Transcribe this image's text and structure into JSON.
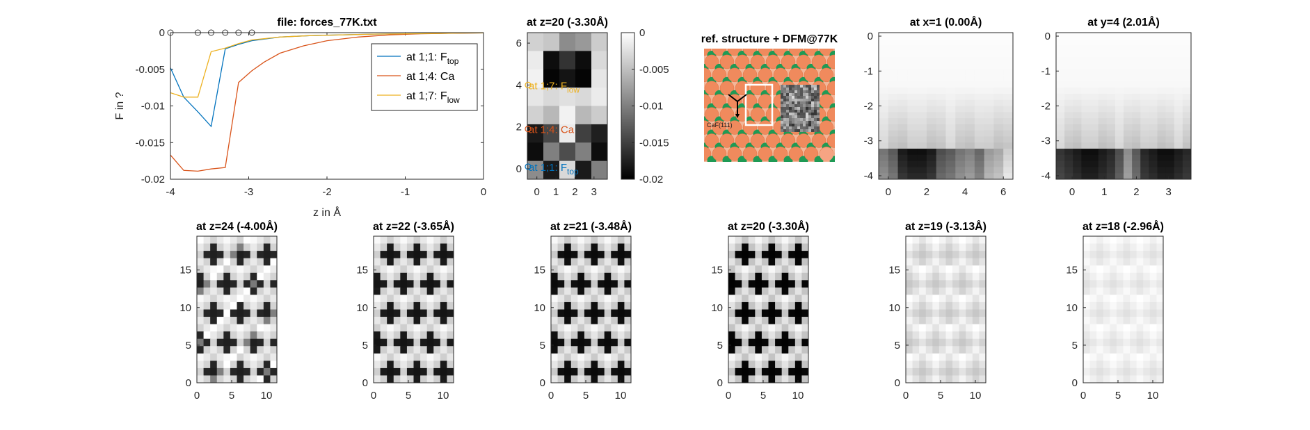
{
  "chart_data": [
    {
      "id": "force-curves",
      "type": "line",
      "title": "file: forces_77K.txt",
      "xlabel": "z in Å",
      "ylabel": "F in ?",
      "xlim": [
        -4,
        0
      ],
      "ylim": [
        -0.02,
        0
      ],
      "xticks": [
        "-4",
        "-3",
        "-2",
        "-1",
        "0"
      ],
      "yticks": [
        "0",
        "-0.005",
        "-0.01",
        "-0.015",
        "-0.02"
      ],
      "legend_position": "top-right",
      "markers_z": [
        -3.65,
        -3.48,
        -3.3,
        -3.13,
        -2.96
      ],
      "series": [
        {
          "name": "at 1;1: F",
          "sub": "top",
          "color": "#0072BD",
          "x": [
            -4.0,
            -3.83,
            -3.65,
            -3.48,
            -3.3,
            -3.13,
            -2.96,
            -2.6,
            -2.2,
            -1.8,
            -1.4,
            -1.0,
            -0.6,
            -0.2,
            0.0
          ],
          "y": [
            -0.0048,
            -0.0088,
            -0.0108,
            -0.0128,
            -0.0022,
            -0.0016,
            -0.0011,
            -0.0006,
            -0.0004,
            -0.0003,
            -0.0002,
            -0.00015,
            -0.0001,
            -5e-05,
            -3e-05
          ]
        },
        {
          "name": "at 1;4: Ca",
          "color": "#D95319",
          "x": [
            -4.0,
            -3.83,
            -3.65,
            -3.48,
            -3.3,
            -3.13,
            -2.96,
            -2.8,
            -2.6,
            -2.3,
            -2.0,
            -1.6,
            -1.2,
            -0.8,
            -0.4,
            0.0
          ],
          "y": [
            -0.0167,
            -0.0188,
            -0.0189,
            -0.0186,
            -0.0184,
            -0.0068,
            -0.0052,
            -0.004,
            -0.0028,
            -0.0018,
            -0.0011,
            -0.0006,
            -0.0003,
            -0.00015,
            -8e-05,
            -4e-05
          ]
        },
        {
          "name": "at 1;7: F",
          "sub": "low",
          "color": "#EDB120",
          "x": [
            -4.0,
            -3.83,
            -3.65,
            -3.48,
            -3.3,
            -3.13,
            -2.96,
            -2.6,
            -2.2,
            -1.8,
            -1.4,
            -1.0,
            -0.6,
            -0.2,
            0.0
          ],
          "y": [
            -0.0082,
            -0.0088,
            -0.0088,
            -0.0026,
            -0.0021,
            -0.0015,
            -0.001,
            -0.0006,
            -0.0004,
            -0.0003,
            -0.0002,
            -0.00015,
            -0.0001,
            -5e-05,
            -3e-05
          ]
        }
      ]
    },
    {
      "id": "slice-z20-top",
      "type": "heatmap",
      "title": "at z=20 (-3.30Å)",
      "xticks": [
        "0",
        "1",
        "2",
        "3"
      ],
      "yticks": [
        "0",
        "2",
        "4",
        "6"
      ],
      "xlim": [
        -0.5,
        3.7
      ],
      "ylim": [
        -0.5,
        6.5
      ],
      "grid_size": [
        5,
        8
      ],
      "colorbar": {
        "ticks": [
          "0",
          "-0.005",
          "-0.01",
          "-0.015",
          "-0.02"
        ],
        "range": [
          -0.02,
          0
        ]
      },
      "annotations": [
        {
          "text": "at 1;7: F",
          "sub": "low",
          "color": "#EDB120",
          "row": 4.0
        },
        {
          "text": "at 1;4: Ca",
          "color": "#D95319",
          "row": 1.9
        },
        {
          "text": "at 1;1: F",
          "sub": "top",
          "color": "#0072BD",
          "row": 0.1
        }
      ]
    },
    {
      "id": "reference",
      "type": "image",
      "title": "ref. structure + DFM@77K",
      "label": "CaF(111)"
    },
    {
      "id": "slice-x1",
      "type": "heatmap",
      "title": "at x=1 (0.00Å)",
      "xticks": [
        "0",
        "2",
        "4",
        "6"
      ],
      "yticks": [
        "0",
        "-1",
        "-2",
        "-3",
        "-4"
      ],
      "xlim": [
        -0.5,
        6.5
      ],
      "ylim": [
        -4.1,
        0.1
      ]
    },
    {
      "id": "slice-y4",
      "type": "heatmap",
      "title": "at y=4 (2.01Å)",
      "xticks": [
        "0",
        "1",
        "2",
        "3"
      ],
      "yticks": [
        "0",
        "-1",
        "-2",
        "-3",
        "-4"
      ],
      "xlim": [
        -0.5,
        3.7
      ],
      "ylim": [
        -4.1,
        0.1
      ]
    },
    {
      "id": "slice-z24",
      "type": "heatmap",
      "title": "at z=24 (-4.00Å)",
      "contrast": 0.75,
      "xticks": [
        "0",
        "5",
        "10"
      ],
      "yticks": [
        "0",
        "5",
        "10",
        "15"
      ]
    },
    {
      "id": "slice-z22",
      "type": "heatmap",
      "title": "at z=22 (-3.65Å)",
      "contrast": 0.82,
      "xticks": [
        "0",
        "5",
        "10"
      ],
      "yticks": [
        "0",
        "5",
        "10",
        "15"
      ]
    },
    {
      "id": "slice-z21",
      "type": "heatmap",
      "title": "at z=21 (-3.48Å)",
      "contrast": 0.9,
      "xticks": [
        "0",
        "5",
        "10"
      ],
      "yticks": [
        "0",
        "5",
        "10",
        "15"
      ]
    },
    {
      "id": "slice-z20",
      "type": "heatmap",
      "title": "at z=20 (-3.30Å)",
      "contrast": 1.0,
      "xticks": [
        "0",
        "5",
        "10"
      ],
      "yticks": [
        "0",
        "5",
        "10",
        "15"
      ]
    },
    {
      "id": "slice-z19",
      "type": "heatmap",
      "title": "at z=19 (-3.13Å)",
      "contrast": 0.22,
      "xticks": [
        "0",
        "5",
        "10"
      ],
      "yticks": [
        "0",
        "5",
        "10",
        "15"
      ]
    },
    {
      "id": "slice-z18",
      "type": "heatmap",
      "title": "at z=18 (-2.96Å)",
      "contrast": 0.12,
      "xticks": [
        "0",
        "5",
        "10"
      ],
      "yticks": [
        "0",
        "5",
        "10",
        "15"
      ]
    }
  ]
}
